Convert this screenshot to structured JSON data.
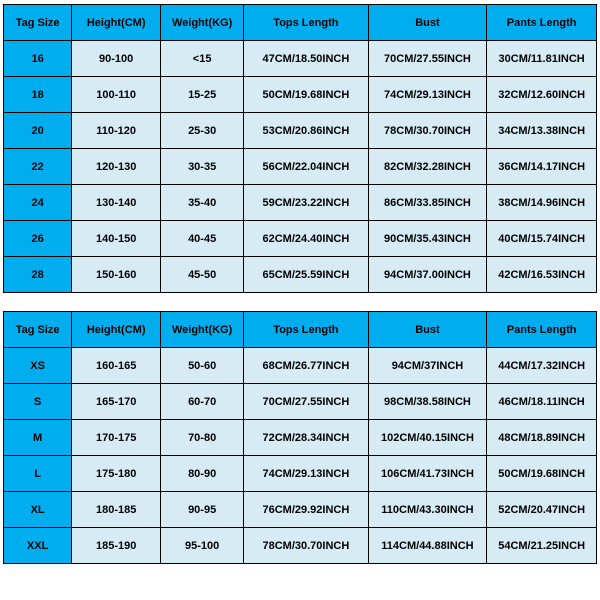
{
  "colors": {
    "header_bg": "#00aef0",
    "body_bg": "#d6ebf4",
    "border": "#000000",
    "text": "#000000"
  },
  "columns": [
    "Tag Size",
    "Height(CM)",
    "Weight(KG)",
    "Tops Length",
    "Bust",
    "Pants Length"
  ],
  "table1": {
    "rows": [
      {
        "tag": "16",
        "height": "90-100",
        "weight": "<15",
        "tops": "47CM/18.50INCH",
        "bust": "70CM/27.55INCH",
        "pants": "30CM/11.81INCH"
      },
      {
        "tag": "18",
        "height": "100-110",
        "weight": "15-25",
        "tops": "50CM/19.68INCH",
        "bust": "74CM/29.13INCH",
        "pants": "32CM/12.60INCH"
      },
      {
        "tag": "20",
        "height": "110-120",
        "weight": "25-30",
        "tops": "53CM/20.86INCH",
        "bust": "78CM/30.70INCH",
        "pants": "34CM/13.38INCH"
      },
      {
        "tag": "22",
        "height": "120-130",
        "weight": "30-35",
        "tops": "56CM/22.04INCH",
        "bust": "82CM/32.28INCH",
        "pants": "36CM/14.17INCH"
      },
      {
        "tag": "24",
        "height": "130-140",
        "weight": "35-40",
        "tops": "59CM/23.22INCH",
        "bust": "86CM/33.85INCH",
        "pants": "38CM/14.96INCH"
      },
      {
        "tag": "26",
        "height": "140-150",
        "weight": "40-45",
        "tops": "62CM/24.40INCH",
        "bust": "90CM/35.43INCH",
        "pants": "40CM/15.74INCH"
      },
      {
        "tag": "28",
        "height": "150-160",
        "weight": "45-50",
        "tops": "65CM/25.59INCH",
        "bust": "94CM/37.00INCH",
        "pants": "42CM/16.53INCH"
      }
    ]
  },
  "table2": {
    "rows": [
      {
        "tag": "XS",
        "height": "160-165",
        "weight": "50-60",
        "tops": "68CM/26.77INCH",
        "bust": "94CM/37INCH",
        "pants": "44CM/17.32INCH"
      },
      {
        "tag": "S",
        "height": "165-170",
        "weight": "60-70",
        "tops": "70CM/27.55INCH",
        "bust": "98CM/38.58INCH",
        "pants": "46CM/18.11INCH"
      },
      {
        "tag": "M",
        "height": "170-175",
        "weight": "70-80",
        "tops": "72CM/28.34INCH",
        "bust": "102CM/40.15INCH",
        "pants": "48CM/18.89INCH"
      },
      {
        "tag": "L",
        "height": "175-180",
        "weight": "80-90",
        "tops": "74CM/29.13INCH",
        "bust": "106CM/41.73INCH",
        "pants": "50CM/19.68INCH"
      },
      {
        "tag": "XL",
        "height": "180-185",
        "weight": "90-95",
        "tops": "76CM/29.92INCH",
        "bust": "110CM/43.30INCH",
        "pants": "52CM/20.47INCH"
      },
      {
        "tag": "XXL",
        "height": "185-190",
        "weight": "95-100",
        "tops": "78CM/30.70INCH",
        "bust": "114CM/44.88INCH",
        "pants": "54CM/21.25INCH"
      }
    ]
  }
}
